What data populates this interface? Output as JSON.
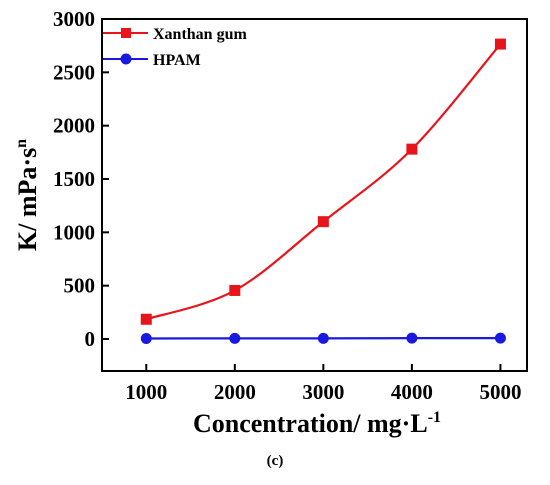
{
  "chart_data": {
    "type": "line",
    "title": "",
    "xlabel": "Concentration/ mg·L",
    "xlabel_sup": "-1",
    "ylabel": "K/ mPa·s",
    "ylabel_sup": "n",
    "x": [
      1000,
      2000,
      3000,
      4000,
      5000
    ],
    "xlim": [
      500,
      5300
    ],
    "ylim": [
      -300,
      3000
    ],
    "xticks": [
      1000,
      2000,
      3000,
      4000,
      5000
    ],
    "yticks": [
      0,
      500,
      1000,
      1500,
      2000,
      2500,
      3000
    ],
    "legend_position": "top-left",
    "grid": false,
    "series": [
      {
        "name": "Xanthan gum",
        "values": [
          185,
          455,
          1100,
          1780,
          2765
        ],
        "color": "#e8141b",
        "marker": "square"
      },
      {
        "name": "HPAM",
        "values": [
          5,
          6,
          6,
          8,
          8
        ],
        "color": "#1a1adf",
        "marker": "circle"
      }
    ]
  },
  "caption": "(c)"
}
